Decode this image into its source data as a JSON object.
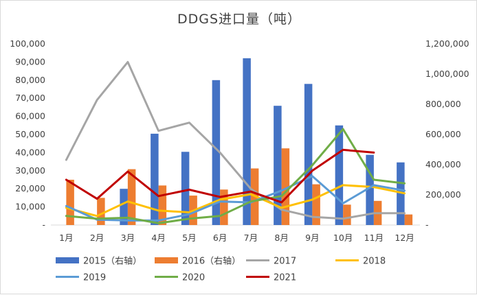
{
  "chart_data": {
    "type": "bar",
    "title": "DDGS进口量（吨）",
    "categories": [
      "1月",
      "2月",
      "3月",
      "4月",
      "5月",
      "6月",
      "7月",
      "8月",
      "9月",
      "10月",
      "11月",
      "12月"
    ],
    "y_left": {
      "min": 0,
      "max": 100000,
      "ticks": [
        "-",
        "10,000",
        "20,000",
        "30,000",
        "40,000",
        "50,000",
        "60,000",
        "70,000",
        "80,000",
        "90,000",
        "100,000"
      ]
    },
    "y_right": {
      "min": 0,
      "max": 1200000,
      "ticks": [
        "-",
        "200,000",
        "400,000",
        "600,000",
        "800,000",
        "1,000,000",
        "1,200,000"
      ]
    },
    "grid": false,
    "legend_position": "bottom",
    "series": [
      {
        "name": "2015（右轴）",
        "type": "bar",
        "axis": "right",
        "color": "#4472C4",
        "values": [
          null,
          null,
          240000,
          605000,
          485000,
          960000,
          1105000,
          790000,
          935000,
          660000,
          465000,
          415000
        ]
      },
      {
        "name": "2016（右轴）",
        "type": "bar",
        "axis": "right",
        "color": "#ED7D31",
        "values": [
          300000,
          180000,
          370000,
          262000,
          195000,
          235000,
          375000,
          508000,
          270000,
          135000,
          160000,
          70000
        ]
      },
      {
        "name": "2017",
        "type": "line",
        "axis": "left",
        "color": "#A5A5A5",
        "values": [
          36000,
          69000,
          90000,
          52000,
          56500,
          40000,
          20000,
          8500,
          4500,
          3500,
          6500,
          6500
        ]
      },
      {
        "name": "2018",
        "type": "line",
        "axis": "left",
        "color": "#FFC000",
        "values": [
          9500,
          5000,
          13000,
          8000,
          7000,
          14000,
          17000,
          9500,
          14000,
          22000,
          21000,
          17500
        ]
      },
      {
        "name": "2019",
        "type": "line",
        "axis": "left",
        "color": "#5B9BD5",
        "values": [
          10500,
          3000,
          2500,
          2500,
          6000,
          13000,
          12500,
          19000,
          27000,
          12000,
          22000,
          19000
        ]
      },
      {
        "name": "2020",
        "type": "line",
        "axis": "left",
        "color": "#70AD47",
        "values": [
          5000,
          3500,
          4000,
          1000,
          3500,
          5000,
          13000,
          16000,
          33000,
          53000,
          25000,
          23000
        ]
      },
      {
        "name": "2021",
        "type": "line",
        "axis": "left",
        "color": "#C00000",
        "values": [
          25000,
          14500,
          29500,
          16000,
          19500,
          15500,
          18500,
          12500,
          30000,
          41500,
          40000,
          null
        ]
      }
    ]
  }
}
